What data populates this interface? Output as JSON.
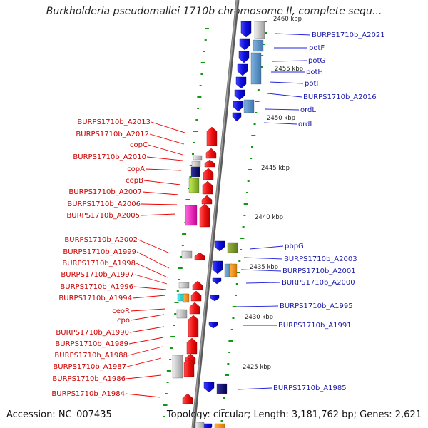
{
  "title": "Burkholderia pseudomallei 1710b chromosome II, complete sequ...",
  "footer": {
    "accession": "Accession: NC_007435",
    "summary": "Topology: circular; Length: 3,181,762 bp; Genes: 2,621"
  },
  "colors": {
    "forward_gene": "#1a1aee",
    "reverse_gene": "#ee1111",
    "backbone": "#888888",
    "tick_dots": "#119911"
  },
  "scale_ticks": [
    "2460 kbp",
    "2455 kbp",
    "2450 kbp",
    "2445 kbp",
    "2440 kbp",
    "2435 kbp",
    "2430 kbp",
    "2425 kbp"
  ],
  "right_labels": [
    "BURPS1710b_A2021",
    "potF",
    "potG",
    "potH",
    "potI",
    "BURPS1710b_A2016",
    "ordL",
    "ordL",
    "pbpG",
    "BURPS1710b_A2003",
    "BURPS1710b_A2001",
    "BURPS1710b_A2000",
    "BURPS1710b_A1995",
    "BURPS1710b_A1991",
    "BURPS1710b_A1985"
  ],
  "left_labels": [
    "BURPS1710b_A2013",
    "BURPS1710b_A2012",
    "copC",
    "BURPS1710b_A2010",
    "copA",
    "copB",
    "BURPS1710b_A2007",
    "BURPS1710b_A2006",
    "BURPS1710b_A2005",
    "BURPS1710b_A2002",
    "BURPS1710b_A1999",
    "BURPS1710b_A1998",
    "BURPS1710b_A1997",
    "BURPS1710b_A1996",
    "BURPS1710b_A1994",
    "ceoR",
    "cpo",
    "BURPS1710b_A1990",
    "BURPS1710b_A1989",
    "BURPS1710b_A1988",
    "BURPS1710b_A1987",
    "BURPS1710b_A1986",
    "BURPS1710b_A1984"
  ]
}
